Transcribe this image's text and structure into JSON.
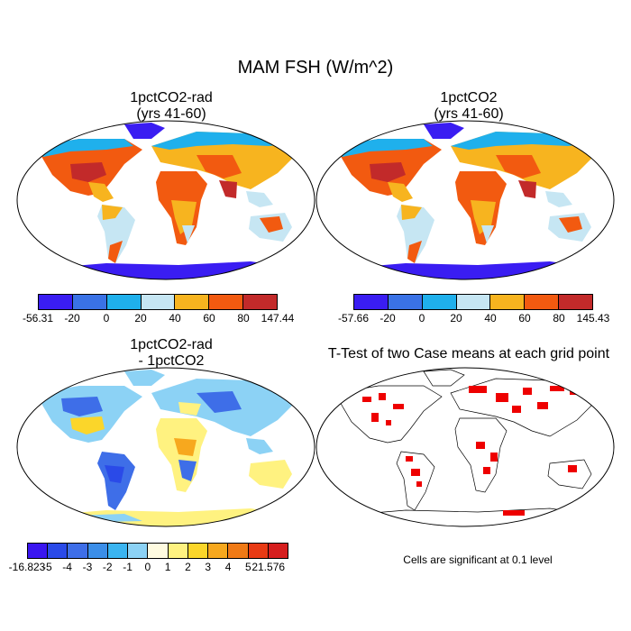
{
  "title": "MAM FSH (W/m^2)",
  "panels": {
    "p1": {
      "title": "1pctCO2-rad\n(yrs 41-60)"
    },
    "p2": {
      "title": "1pctCO2\n(yrs 41-60)"
    },
    "p3": {
      "title": "1pctCO2-rad\n- 1pctCO2"
    },
    "p4": {
      "title": "T-Test of two Case means at each grid point",
      "note": "Cells are significant at 0.1 level"
    }
  },
  "colorbars": {
    "cb1": {
      "labels": [
        "-56.31",
        "-20",
        "0",
        "20",
        "40",
        "60",
        "80",
        "147.44"
      ],
      "colors": [
        "#3a1df2",
        "#3a72e6",
        "#1fb0ec",
        "#c6e6f3",
        "#f7b41f",
        "#f25a10",
        "#c22a2a"
      ]
    },
    "cb2": {
      "labels": [
        "-57.66",
        "-20",
        "0",
        "20",
        "40",
        "60",
        "80",
        "145.43"
      ],
      "colors": [
        "#3a1df2",
        "#3a72e6",
        "#1fb0ec",
        "#c6e6f3",
        "#f7b41f",
        "#f25a10",
        "#c22a2a"
      ]
    },
    "cb3": {
      "labels": [
        "-16.823",
        "-5",
        "-4",
        "-3",
        "-2",
        "-1",
        "0",
        "1",
        "2",
        "3",
        "4",
        "5",
        "21.576"
      ],
      "colors": [
        "#3a16f0",
        "#2a4ae8",
        "#3e6ee8",
        "#3b8ee8",
        "#3ab4f0",
        "#8cd2f5",
        "#fffbe0",
        "#fff280",
        "#fbd62a",
        "#f7a81e",
        "#f07a16",
        "#e83a14",
        "#d61e1e"
      ]
    }
  }
}
